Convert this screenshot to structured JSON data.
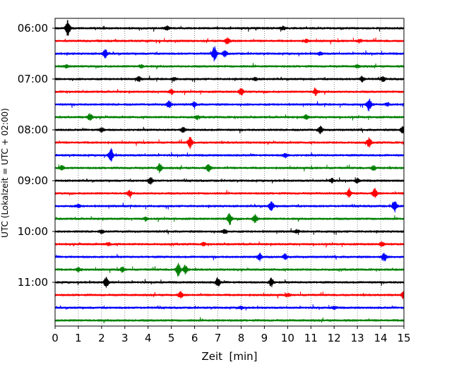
{
  "chart_data": {
    "type": "line",
    "title": "",
    "xlabel": "Zeit  [min]",
    "ylabel": "UTC (Lokalzeit = UTC + 02:00)",
    "xlim": [
      0,
      15
    ],
    "x_ticks": [
      "0",
      "1",
      "2",
      "3",
      "4",
      "5",
      "6",
      "7",
      "8",
      "9",
      "10",
      "11",
      "12",
      "13",
      "14",
      "15"
    ],
    "y_ticks": [
      "06:00",
      "07:00",
      "08:00",
      "09:00",
      "10:00",
      "11:00"
    ],
    "grid": "vertical dotted at each minute",
    "trace_interval_min": 15,
    "trace_start": "06:00",
    "trace_count": 24,
    "trace_colors": [
      "#000000",
      "#ff0000",
      "#0000ff",
      "#008000"
    ],
    "traces": [
      {
        "row": 0,
        "events": [
          [
            0.55,
            11
          ],
          [
            4.8,
            3
          ],
          [
            9.8,
            2
          ]
        ]
      },
      {
        "row": 1,
        "events": [
          [
            7.4,
            5
          ],
          [
            10.8,
            2
          ],
          [
            13.1,
            2
          ]
        ]
      },
      {
        "row": 2,
        "events": [
          [
            2.15,
            6
          ],
          [
            6.85,
            10
          ],
          [
            7.3,
            4
          ],
          [
            11.4,
            2
          ]
        ]
      },
      {
        "row": 3,
        "events": [
          [
            0.5,
            2
          ],
          [
            3.7,
            2
          ],
          [
            13.0,
            2
          ]
        ]
      },
      {
        "row": 4,
        "events": [
          [
            3.6,
            3
          ],
          [
            5.1,
            2
          ],
          [
            8.6,
            2
          ],
          [
            13.2,
            4
          ],
          [
            14.1,
            3
          ]
        ]
      },
      {
        "row": 5,
        "events": [
          [
            5.0,
            3
          ],
          [
            8.0,
            5
          ],
          [
            11.2,
            5
          ]
        ]
      },
      {
        "row": 6,
        "events": [
          [
            4.9,
            5
          ],
          [
            6.0,
            3
          ],
          [
            13.5,
            9
          ],
          [
            14.3,
            2
          ]
        ]
      },
      {
        "row": 7,
        "events": [
          [
            1.5,
            5
          ],
          [
            6.1,
            2
          ],
          [
            10.8,
            3
          ]
        ]
      },
      {
        "row": 8,
        "events": [
          [
            2.0,
            3
          ],
          [
            5.5,
            3
          ],
          [
            11.4,
            5
          ],
          [
            14.95,
            6
          ]
        ]
      },
      {
        "row": 9,
        "events": [
          [
            5.8,
            8
          ],
          [
            13.5,
            6
          ]
        ]
      },
      {
        "row": 10,
        "events": [
          [
            2.4,
            9
          ],
          [
            9.9,
            3
          ]
        ]
      },
      {
        "row": 11,
        "events": [
          [
            0.3,
            3
          ],
          [
            4.5,
            6
          ],
          [
            6.6,
            5
          ],
          [
            13.7,
            3
          ]
        ]
      },
      {
        "row": 12,
        "events": [
          [
            4.1,
            5
          ],
          [
            11.9,
            3
          ],
          [
            13.0,
            3
          ]
        ]
      },
      {
        "row": 13,
        "events": [
          [
            3.2,
            4
          ],
          [
            12.65,
            5
          ],
          [
            13.75,
            6
          ]
        ]
      },
      {
        "row": 14,
        "events": [
          [
            1.0,
            2
          ],
          [
            9.3,
            7
          ],
          [
            14.6,
            8
          ]
        ]
      },
      {
        "row": 15,
        "events": [
          [
            7.5,
            8
          ],
          [
            8.6,
            6
          ],
          [
            3.9,
            2
          ]
        ]
      },
      {
        "row": 16,
        "events": [
          [
            2.0,
            2
          ],
          [
            7.3,
            3
          ],
          [
            10.4,
            2
          ]
        ]
      },
      {
        "row": 17,
        "events": [
          [
            2.3,
            2
          ],
          [
            6.4,
            2
          ],
          [
            14.05,
            3
          ]
        ]
      },
      {
        "row": 18,
        "events": [
          [
            8.8,
            5
          ],
          [
            9.9,
            4
          ],
          [
            14.15,
            6
          ]
        ]
      },
      {
        "row": 19,
        "events": [
          [
            1.0,
            3
          ],
          [
            5.3,
            9
          ],
          [
            5.6,
            6
          ],
          [
            2.9,
            3
          ]
        ]
      },
      {
        "row": 20,
        "events": [
          [
            2.2,
            7
          ],
          [
            7.0,
            6
          ],
          [
            9.3,
            6
          ]
        ]
      },
      {
        "row": 21,
        "events": [
          [
            5.4,
            4
          ],
          [
            15.0,
            6
          ],
          [
            10.0,
            2
          ]
        ]
      },
      {
        "row": 22,
        "events": [
          [
            8.0,
            2
          ],
          [
            12.0,
            2
          ]
        ]
      },
      {
        "row": 23,
        "events": []
      }
    ]
  }
}
